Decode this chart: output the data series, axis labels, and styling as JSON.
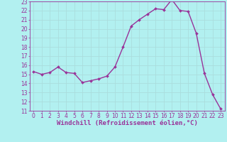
{
  "x": [
    0,
    1,
    2,
    3,
    4,
    5,
    6,
    7,
    8,
    9,
    10,
    11,
    12,
    13,
    14,
    15,
    16,
    17,
    18,
    19,
    20,
    21,
    22,
    23
  ],
  "y": [
    15.3,
    15.0,
    15.2,
    15.8,
    15.2,
    15.1,
    14.1,
    14.3,
    14.5,
    14.8,
    15.8,
    18.0,
    20.3,
    21.0,
    21.6,
    22.2,
    22.1,
    23.2,
    22.0,
    21.9,
    19.5,
    15.1,
    12.8,
    11.2
  ],
  "line_color": "#993399",
  "marker": "D",
  "marker_size": 2,
  "bg_color": "#b2f0f0",
  "grid_color": "#aadddd",
  "xlabel": "Windchill (Refroidissement éolien,°C)",
  "ylabel": "",
  "title": "",
  "xlim": [
    -0.5,
    23.5
  ],
  "ylim": [
    11,
    23
  ],
  "yticks": [
    11,
    12,
    13,
    14,
    15,
    16,
    17,
    18,
    19,
    20,
    21,
    22,
    23
  ],
  "xticks": [
    0,
    1,
    2,
    3,
    4,
    5,
    6,
    7,
    8,
    9,
    10,
    11,
    12,
    13,
    14,
    15,
    16,
    17,
    18,
    19,
    20,
    21,
    22,
    23
  ],
  "tick_fontsize": 5.5,
  "xlabel_fontsize": 6.5,
  "line_width": 1.0,
  "spine_color": "#993399",
  "text_color": "#993399"
}
